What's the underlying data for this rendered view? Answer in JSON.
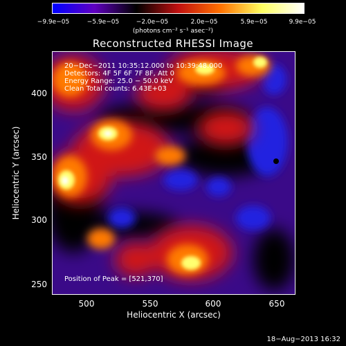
{
  "colorbar": {
    "ticks": [
      "−9.9e−05",
      "−5.9e−05",
      "−2.0e−05",
      "2.0e−05",
      "5.9e−05",
      "9.9e−05"
    ],
    "units": "(photons cm⁻² s⁻¹ asec⁻²)",
    "gradient_colors": [
      "#0000ff",
      "#6000c0",
      "#000000",
      "#c01010",
      "#ff7000",
      "#ffff60",
      "#ffffff"
    ]
  },
  "title": "Reconstructed RHESSI Image",
  "info": {
    "line1": "20−Dec−2011 10:35:12.000 to 10:39:48.000",
    "line2": "Detectors: 4F 5F 6F 7F 8F, Att 0",
    "line3": "Energy Range: 25.0 − 50.0 keV",
    "line4": "Clean     Total counts: 6.43E+03",
    "peak": "Position of Peak = [521,370]"
  },
  "axes": {
    "xlabel": "Heliocentric X (arcsec)",
    "ylabel": "Heliocentric Y (arcsec)",
    "xticks": [
      "500",
      "550",
      "600",
      "650"
    ],
    "yticks": [
      "400",
      "350",
      "300",
      "250"
    ]
  },
  "footer": "18−Aug−2013 16:32"
}
